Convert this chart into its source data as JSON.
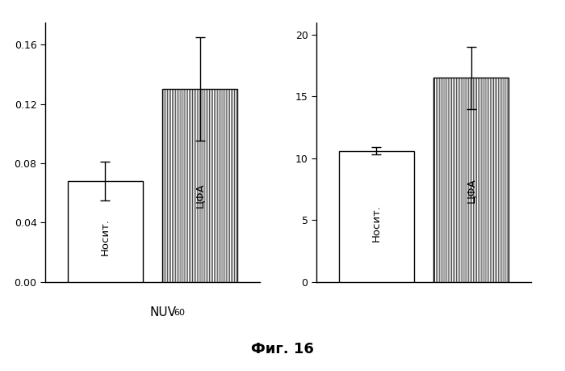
{
  "left": {
    "bars": [
      0.068,
      0.13
    ],
    "errors": [
      0.013,
      0.035
    ],
    "labels": [
      "Носит.",
      "ЦФА"
    ],
    "xlabel": "NUV",
    "xlabel_sub": "60",
    "ylim": [
      0,
      0.175
    ],
    "yticks": [
      0,
      0.04,
      0.08,
      0.12,
      0.16
    ],
    "bar_hatches": [
      null,
      "|"
    ]
  },
  "right": {
    "bars": [
      10.6,
      16.5
    ],
    "errors": [
      0.3,
      2.5
    ],
    "labels": [
      "Носит.",
      "ЦФА"
    ],
    "ylim": [
      0,
      21
    ],
    "yticks": [
      0,
      5,
      10,
      15,
      20
    ],
    "bar_hatches": [
      null,
      "|"
    ]
  },
  "caption": "Фиг. 16",
  "bg_color": "#ffffff",
  "bar_edgecolor": "#000000",
  "text_color": "#000000"
}
